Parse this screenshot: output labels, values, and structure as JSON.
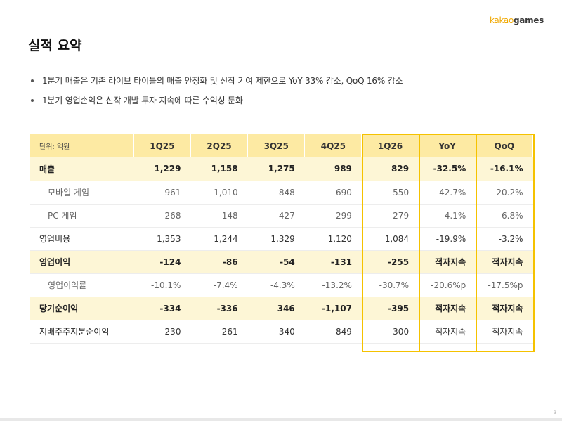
{
  "brand": {
    "logo_prefix": "kakao",
    "logo_suffix": "games"
  },
  "page": {
    "title": "실적 요약",
    "page_number": "3"
  },
  "bullets": [
    "1분기 매출은 기존 라이브 타이틀의 매출 안정화 및 신작 기여 제한으로 YoY 33% 감소, QoQ 16% 감소",
    "1분기 영업손익은 신작 개발 투자 지속에 따른 수익성 둔화"
  ],
  "table": {
    "unit_label": "단위: 억원",
    "columns": [
      "1Q25",
      "2Q25",
      "3Q25",
      "4Q25",
      "1Q26",
      "YoY",
      "QoQ"
    ],
    "rows": [
      {
        "label": "매출",
        "style": "hl",
        "values": [
          "1,229",
          "1,158",
          "1,275",
          "989",
          "829",
          "-32.5%",
          "-16.1%"
        ]
      },
      {
        "label": "모바일 게임",
        "style": "sub",
        "values": [
          "961",
          "1,010",
          "848",
          "690",
          "550",
          "-42.7%",
          "-20.2%"
        ]
      },
      {
        "label": "PC 게임",
        "style": "sub",
        "values": [
          "268",
          "148",
          "427",
          "299",
          "279",
          "4.1%",
          "-6.8%"
        ]
      },
      {
        "label": "영업비용",
        "style": "plain",
        "values": [
          "1,353",
          "1,244",
          "1,329",
          "1,120",
          "1,084",
          "-19.9%",
          "-3.2%"
        ]
      },
      {
        "label": "영업이익",
        "style": "hl",
        "values": [
          "-124",
          "-86",
          "-54",
          "-131",
          "-255",
          "적자지속",
          "적자지속"
        ]
      },
      {
        "label": "영업이익률",
        "style": "sub",
        "values": [
          "-10.1%",
          "-7.4%",
          "-4.3%",
          "-13.2%",
          "-30.7%",
          "-20.6%p",
          "-17.5%p"
        ]
      },
      {
        "label": "당기순이익",
        "style": "hl",
        "values": [
          "-334",
          "-336",
          "346",
          "-1,107",
          "-395",
          "적자지속",
          "적자지속"
        ]
      },
      {
        "label": "지배주주지분순이익",
        "style": "plain",
        "values": [
          "-230",
          "-261",
          "340",
          "-849",
          "-300",
          "적자지속",
          "적자지속"
        ]
      }
    ]
  },
  "colors": {
    "accent": "#f5c200",
    "header_bg": "#fdeaa3",
    "highlight_row_bg": "#fdf6d6"
  }
}
